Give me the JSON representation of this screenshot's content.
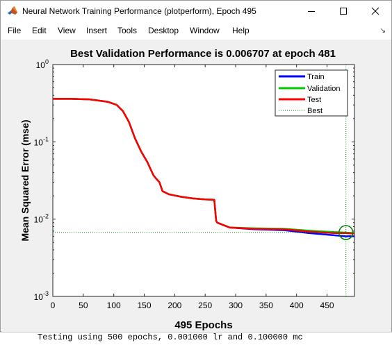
{
  "window": {
    "title": "Neural Network Training Performance (plotperform), Epoch 495",
    "controls": [
      "minimize",
      "maximize",
      "close"
    ]
  },
  "menu": {
    "items": [
      "File",
      "Edit",
      "View",
      "Insert",
      "Tools",
      "Desktop",
      "Window",
      "Help"
    ]
  },
  "chart_data": {
    "type": "line",
    "title": "Best Validation Performance is 0.006707 at epoch 481",
    "xlabel": "495 Epochs",
    "ylabel": "Mean Squared Error  (mse)",
    "xlim": [
      0,
      495
    ],
    "ylim": [
      0.001,
      1
    ],
    "yscale": "log",
    "x_ticks": [
      "0",
      "50",
      "100",
      "150",
      "200",
      "250",
      "300",
      "350",
      "400",
      "450"
    ],
    "y_ticks": [
      {
        "base": "10",
        "exp": "0"
      },
      {
        "base": "10",
        "exp": "-1"
      },
      {
        "base": "10",
        "exp": "-2"
      },
      {
        "base": "10",
        "exp": "-3"
      }
    ],
    "legend_position": "top-right",
    "legend": [
      "Train",
      "Validation",
      "Test",
      "Best"
    ],
    "colors": {
      "train": "#0000ff",
      "validation": "#00c800",
      "test": "#ff0000",
      "best": "#008000"
    },
    "series": [
      {
        "name": "Train",
        "x": [
          0,
          30,
          60,
          90,
          105,
          115,
          125,
          135,
          145,
          155,
          160,
          165,
          170,
          175,
          180,
          190,
          210,
          230,
          250,
          265,
          268,
          270,
          290,
          330,
          380,
          420,
          460,
          480,
          495
        ],
        "y": [
          0.36,
          0.36,
          0.355,
          0.33,
          0.3,
          0.25,
          0.18,
          0.11,
          0.075,
          0.055,
          0.045,
          0.037,
          0.033,
          0.03,
          0.023,
          0.021,
          0.0195,
          0.0185,
          0.018,
          0.0178,
          0.0095,
          0.009,
          0.0078,
          0.0074,
          0.0072,
          0.0066,
          0.0062,
          0.006,
          0.006
        ]
      },
      {
        "name": "Validation",
        "x": [
          0,
          30,
          60,
          90,
          105,
          115,
          125,
          135,
          145,
          155,
          160,
          165,
          170,
          175,
          180,
          190,
          210,
          230,
          250,
          265,
          268,
          270,
          290,
          330,
          380,
          420,
          460,
          480,
          495
        ],
        "y": [
          0.36,
          0.36,
          0.355,
          0.33,
          0.3,
          0.25,
          0.18,
          0.11,
          0.075,
          0.055,
          0.045,
          0.037,
          0.033,
          0.03,
          0.023,
          0.021,
          0.0195,
          0.0185,
          0.018,
          0.0178,
          0.0095,
          0.009,
          0.0078,
          0.0076,
          0.0075,
          0.0071,
          0.0068,
          0.0067,
          0.0066
        ]
      },
      {
        "name": "Test",
        "x": [
          0,
          30,
          60,
          90,
          105,
          115,
          125,
          135,
          145,
          155,
          160,
          165,
          170,
          175,
          180,
          190,
          210,
          230,
          250,
          265,
          268,
          270,
          290,
          330,
          380,
          420,
          460,
          480,
          495
        ],
        "y": [
          0.36,
          0.36,
          0.355,
          0.33,
          0.3,
          0.25,
          0.18,
          0.11,
          0.075,
          0.055,
          0.045,
          0.037,
          0.033,
          0.03,
          0.023,
          0.021,
          0.0195,
          0.0185,
          0.018,
          0.0178,
          0.0095,
          0.009,
          0.0078,
          0.0075,
          0.0074,
          0.0069,
          0.0066,
          0.0066,
          0.0065
        ]
      }
    ],
    "best": {
      "epoch": 481,
      "value": 0.006707
    }
  },
  "command_window": {
    "text": "Testing using 500 epochs, 0.001000 lr and 0.100000 mc"
  }
}
